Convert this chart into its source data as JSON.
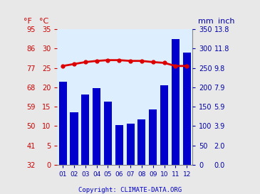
{
  "months": [
    "01",
    "02",
    "03",
    "04",
    "05",
    "06",
    "07",
    "08",
    "09",
    "10",
    "11",
    "12"
  ],
  "precipitation_mm": [
    215,
    135,
    182,
    198,
    163,
    103,
    107,
    118,
    143,
    205,
    325,
    290
  ],
  "temperature_c": [
    25.5,
    26.0,
    26.5,
    26.8,
    27.0,
    27.0,
    26.8,
    26.8,
    26.5,
    26.3,
    25.5,
    25.5
  ],
  "bar_color": "#0000cc",
  "line_color": "#dd0000",
  "left_axis_c": [
    0,
    5,
    10,
    15,
    20,
    25,
    30,
    35
  ],
  "left_axis_f": [
    32,
    41,
    50,
    59,
    68,
    77,
    86,
    95
  ],
  "right_axis_mm": [
    0,
    50,
    100,
    150,
    200,
    250,
    300,
    350
  ],
  "right_axis_inch": [
    "0.0",
    "2.0",
    "3.9",
    "5.9",
    "7.9",
    "9.8",
    "11.8",
    "13.8"
  ],
  "ylim_mm": [
    0,
    350
  ],
  "ylim_c": [
    0,
    35
  ],
  "bg_color": "#e8e8e8",
  "plot_bg_color": "#ddeeff",
  "left_label_c": "°C",
  "left_label_f": "°F",
  "right_label_mm": "mm",
  "right_label_inch": "inch",
  "copyright_text": "Copyright: CLIMATE-DATA.ORG",
  "copyright_color": "#0000cc",
  "left_tick_color": "#cc0000",
  "right_tick_color": "#0000aa",
  "grid_color": "#ffffff"
}
